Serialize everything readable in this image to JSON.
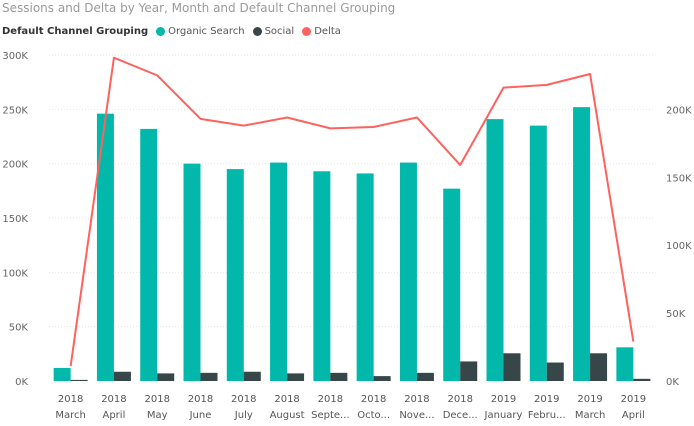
{
  "chart_data": {
    "type": "bar",
    "title": "Sessions and Delta by Year, Month and Default Channel Grouping",
    "legend_title": "Default Channel Grouping",
    "legend_position": "top-left",
    "categories": [
      [
        "2018",
        "March"
      ],
      [
        "2018",
        "April"
      ],
      [
        "2018",
        "May"
      ],
      [
        "2018",
        "June"
      ],
      [
        "2018",
        "July"
      ],
      [
        "2018",
        "August"
      ],
      [
        "2018",
        "Septe..."
      ],
      [
        "2018",
        "Octo..."
      ],
      [
        "2018",
        "Nove..."
      ],
      [
        "2018",
        "Dece..."
      ],
      [
        "2019",
        "January"
      ],
      [
        "2019",
        "Febru..."
      ],
      [
        "2019",
        "March"
      ],
      [
        "2019",
        "April"
      ]
    ],
    "series": [
      {
        "name": "Organic Search",
        "kind": "bar",
        "axis": "left",
        "color": "#01b8aa",
        "values": [
          12000,
          246000,
          232000,
          200000,
          195000,
          201000,
          193000,
          191000,
          201000,
          177000,
          241000,
          235000,
          252000,
          31000
        ]
      },
      {
        "name": "Social",
        "kind": "bar",
        "axis": "left",
        "color": "#374649",
        "values": [
          1000,
          8500,
          7000,
          7500,
          8500,
          7000,
          7500,
          4500,
          7500,
          18000,
          25500,
          17000,
          25500,
          2000
        ]
      },
      {
        "name": "Delta",
        "kind": "line",
        "axis": "right",
        "color": "#fd625e",
        "values": [
          11000,
          238000,
          225000,
          193000,
          188000,
          194000,
          186000,
          187000,
          194000,
          159000,
          216000,
          218000,
          226000,
          29000
        ]
      }
    ],
    "y_left": {
      "min": 0,
      "max": 300000,
      "ticks": [
        0,
        50000,
        100000,
        150000,
        200000,
        250000,
        300000
      ],
      "tick_labels": [
        "0K",
        "50K",
        "100K",
        "150K",
        "200K",
        "250K",
        "300K"
      ]
    },
    "y_right": {
      "min": 0,
      "max": 240000,
      "ticks": [
        0,
        50000,
        100000,
        150000,
        200000
      ],
      "tick_labels": [
        "0K",
        "50K",
        "100K",
        "150K",
        "200K"
      ]
    },
    "grid": true
  }
}
